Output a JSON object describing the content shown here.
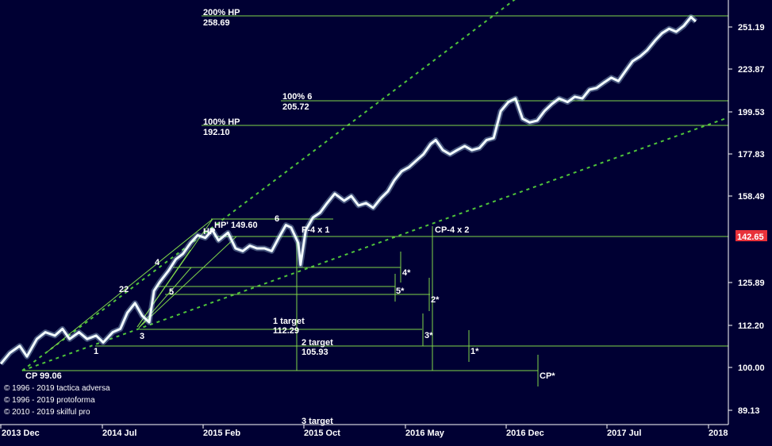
{
  "chart_data": {
    "type": "line",
    "colors": {
      "background": "#000033",
      "price": "#e8f8ff",
      "level": "#7fd64a",
      "trend": "#4fc43a",
      "badge": "#e8313a"
    },
    "x_ticks": [
      "2013 Dec",
      "2014 Jul",
      "2015 Feb",
      "2015 Oct",
      "2016 May",
      "2016 Dec",
      "2017 Jul",
      "2018"
    ],
    "y_ticks": [
      "251.19",
      "223.87",
      "199.53",
      "177.83",
      "158.49",
      "125.89",
      "112.20",
      "100.00",
      "89.13"
    ],
    "y_scale": "log",
    "ylim": [
      85,
      270
    ],
    "current_price": "142.65",
    "level_labels": [
      {
        "name": "200% HP",
        "value": "258.69"
      },
      {
        "name": "100% 6",
        "value": "205.72"
      },
      {
        "name": "100% HP",
        "value": "192.10"
      },
      {
        "name": "1 target",
        "value": "112.29"
      },
      {
        "name": "2 target",
        "value": "105.93"
      },
      {
        "name": "3 target",
        "value": ""
      },
      {
        "name": "CP",
        "value": "99.06"
      }
    ],
    "hp_label": "HP' 149.60",
    "point_labels": [
      "HP",
      "6",
      "4",
      "22",
      "5",
      "3",
      "1",
      "P-4 x 1",
      "CP-4 x 2",
      "4*",
      "5*",
      "2*",
      "3*",
      "1*",
      "CP*"
    ],
    "price_series": [
      [
        "2013-12-01",
        101
      ],
      [
        "2013-12-20",
        104
      ],
      [
        "2014-01-10",
        106
      ],
      [
        "2014-01-25",
        103
      ],
      [
        "2014-02-15",
        108
      ],
      [
        "2014-03-05",
        110
      ],
      [
        "2014-03-25",
        109
      ],
      [
        "2014-04-10",
        111
      ],
      [
        "2014-04-25",
        108
      ],
      [
        "2014-05-15",
        110
      ],
      [
        "2014-06-01",
        108
      ],
      [
        "2014-06-20",
        109
      ],
      [
        "2014-07-05",
        107
      ],
      [
        "2014-07-25",
        110
      ],
      [
        "2014-08-10",
        111
      ],
      [
        "2014-08-25",
        116
      ],
      [
        "2014-09-10",
        119
      ],
      [
        "2014-09-25",
        115
      ],
      [
        "2014-10-10",
        113
      ],
      [
        "2014-10-20",
        123
      ],
      [
        "2014-11-01",
        126
      ],
      [
        "2014-11-20",
        130
      ],
      [
        "2014-12-05",
        134
      ],
      [
        "2014-12-20",
        136
      ],
      [
        "2015-01-05",
        140
      ],
      [
        "2015-01-20",
        143
      ],
      [
        "2015-02-05",
        142
      ],
      [
        "2015-02-20",
        145
      ],
      [
        "2015-03-05",
        141
      ],
      [
        "2015-03-25",
        144
      ],
      [
        "2015-04-10",
        138
      ],
      [
        "2015-04-25",
        137
      ],
      [
        "2015-05-10",
        139
      ],
      [
        "2015-05-25",
        138
      ],
      [
        "2015-06-10",
        138
      ],
      [
        "2015-06-25",
        137
      ],
      [
        "2015-07-10",
        142
      ],
      [
        "2015-07-25",
        147
      ],
      [
        "2015-08-05",
        146
      ],
      [
        "2015-08-20",
        140
      ],
      [
        "2015-08-25",
        132
      ],
      [
        "2015-09-05",
        145
      ],
      [
        "2015-09-20",
        150
      ],
      [
        "2015-10-05",
        152
      ],
      [
        "2015-10-20",
        156
      ],
      [
        "2015-11-05",
        160
      ],
      [
        "2015-11-25",
        157
      ],
      [
        "2015-12-10",
        159
      ],
      [
        "2015-12-25",
        155
      ],
      [
        "2016-01-10",
        156
      ],
      [
        "2016-01-25",
        154
      ],
      [
        "2016-02-10",
        158
      ],
      [
        "2016-02-25",
        161
      ],
      [
        "2016-03-10",
        166
      ],
      [
        "2016-03-25",
        170
      ],
      [
        "2016-04-10",
        172
      ],
      [
        "2016-04-25",
        175
      ],
      [
        "2016-05-10",
        178
      ],
      [
        "2016-05-25",
        183
      ],
      [
        "2016-06-05",
        185
      ],
      [
        "2016-06-20",
        180
      ],
      [
        "2016-07-05",
        178
      ],
      [
        "2016-07-20",
        180
      ],
      [
        "2016-08-05",
        182
      ],
      [
        "2016-08-20",
        180
      ],
      [
        "2016-09-05",
        181
      ],
      [
        "2016-09-20",
        185
      ],
      [
        "2016-10-05",
        186
      ],
      [
        "2016-10-20",
        200
      ],
      [
        "2016-11-05",
        205
      ],
      [
        "2016-11-20",
        207
      ],
      [
        "2016-12-05",
        196
      ],
      [
        "2016-12-20",
        194
      ],
      [
        "2017-01-05",
        195
      ],
      [
        "2017-01-20",
        200
      ],
      [
        "2017-02-05",
        204
      ],
      [
        "2017-02-20",
        207
      ],
      [
        "2017-03-10",
        205
      ],
      [
        "2017-03-25",
        208
      ],
      [
        "2017-04-10",
        207
      ],
      [
        "2017-04-25",
        212
      ],
      [
        "2017-05-10",
        213
      ],
      [
        "2017-05-25",
        216
      ],
      [
        "2017-06-10",
        219
      ],
      [
        "2017-06-25",
        217
      ],
      [
        "2017-07-10",
        223
      ],
      [
        "2017-07-25",
        229
      ],
      [
        "2017-08-10",
        232
      ],
      [
        "2017-08-25",
        236
      ],
      [
        "2017-09-10",
        242
      ],
      [
        "2017-09-25",
        247
      ],
      [
        "2017-10-10",
        250
      ],
      [
        "2017-10-25",
        248
      ],
      [
        "2017-11-10",
        252
      ],
      [
        "2017-11-25",
        258
      ],
      [
        "2017-12-05",
        255
      ]
    ]
  },
  "copyright": [
    "© 1996 - 2019 tactica adversa",
    "© 1996 - 2019 protoforma",
    "© 2010 - 2019 skilful pro"
  ]
}
